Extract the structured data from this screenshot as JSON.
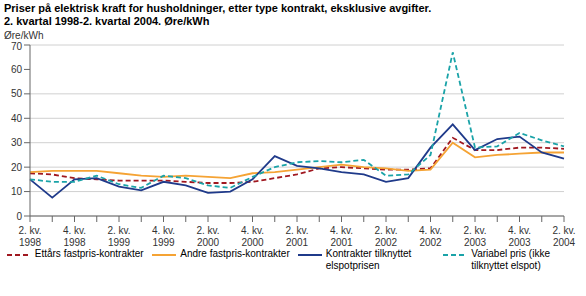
{
  "chart_data": {
    "type": "line",
    "title": "Priser på elektrisk kraft for husholdninger, etter type kontrakt, eksklusive avgifter.",
    "subtitle": "2. kvartal 1998-2. kvartal 2004. Øre/kWh",
    "y_label": "Øre/kWh",
    "categories": [
      "2. kv. 1998",
      null,
      "4. kv. 1998",
      null,
      "2. kv. 1999",
      null,
      "4. kv. 1999",
      null,
      "2. kv. 2000",
      null,
      "4. kv. 2000",
      null,
      "2. kv. 2001",
      null,
      "4. kv. 2001",
      null,
      "2. kv. 2002",
      null,
      "4. kv. 2002",
      null,
      "2. kv. 2003",
      null,
      "4. kv. 2003",
      null,
      "2. kv. 2004"
    ],
    "series": [
      {
        "name": "Ettårs fastpris-kontrakter",
        "color": "#a01820",
        "line_style": "dashed",
        "values": [
          17.5,
          17,
          15.5,
          15,
          14.5,
          14.5,
          14.5,
          14,
          13.5,
          13.5,
          14,
          15.5,
          17,
          19.5,
          20,
          19.5,
          19,
          19,
          19.5,
          32,
          27,
          27,
          28,
          28,
          27.5
        ]
      },
      {
        "name": "Andre fastpris-kontrakter",
        "color": "#f5a334",
        "line_style": "solid",
        "values": [
          18,
          18.5,
          18.5,
          18.5,
          17.5,
          16.5,
          16,
          16.5,
          16,
          15.5,
          17.5,
          18,
          19,
          20,
          21,
          20,
          19.5,
          18.5,
          19,
          30,
          24,
          25,
          25.5,
          26,
          26
        ]
      },
      {
        "name": "Kontrakter tilknyttet elspotprisen",
        "color": "#1f3a8a",
        "line_style": "solid",
        "values": [
          15,
          7.5,
          15,
          15.5,
          12,
          10.5,
          14,
          12.5,
          9.5,
          10,
          15,
          24.5,
          20.5,
          19.5,
          18,
          17,
          14,
          15.5,
          28,
          37.5,
          27,
          31.5,
          32.5,
          26,
          23.5
        ]
      },
      {
        "name": "Variabel pris (ikke tilknyttet elspot)",
        "color": "#1aa3a8",
        "line_style": "dashed",
        "values": [
          15,
          14,
          14,
          16.5,
          13,
          11.5,
          16.5,
          15.5,
          12.5,
          11.5,
          16,
          20,
          22,
          22.5,
          22,
          23,
          16.5,
          17,
          25,
          67,
          28,
          28.5,
          34,
          31,
          28.5
        ]
      }
    ],
    "ylim": [
      0,
      70
    ],
    "yticks": [
      0,
      10,
      20,
      30,
      40,
      50,
      60,
      70
    ],
    "grid": true,
    "legend": "bottom"
  }
}
